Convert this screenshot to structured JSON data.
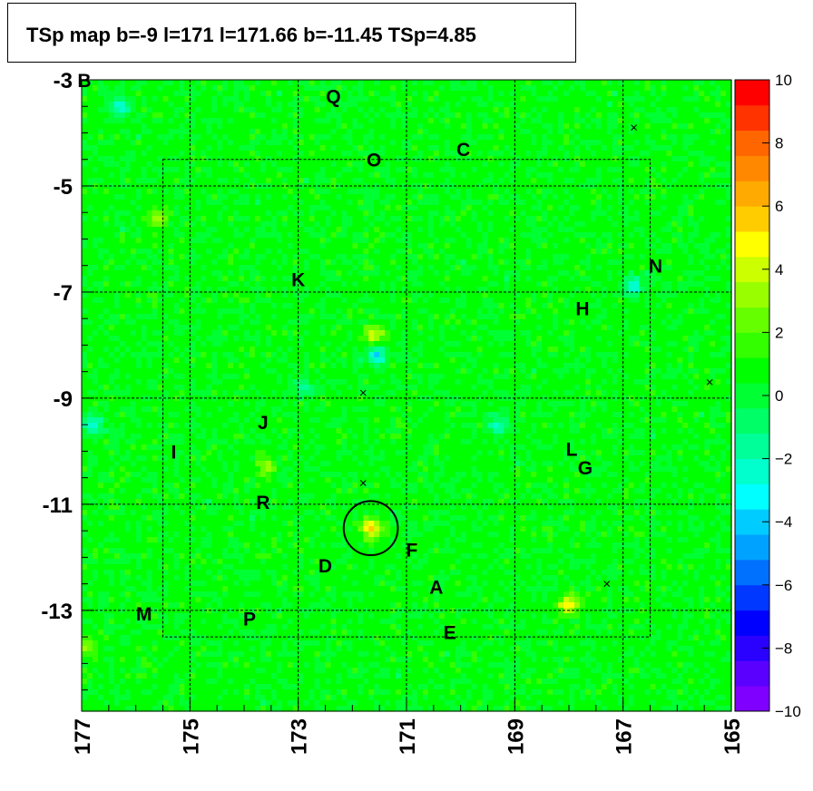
{
  "title": "TSp map b=-9 l=171 l=171.66 b=-11.45 TSp=4.85",
  "chart_data": {
    "type": "heatmap",
    "title": "TSp map b=-9 l=171 l=171.66 b=-11.45 TSp=4.85",
    "xlabel": "",
    "ylabel": "",
    "xlim": [
      177,
      165
    ],
    "ylim": [
      -14.9,
      -3
    ],
    "x_ticks": [
      "177",
      "175",
      "173",
      "171",
      "169",
      "167",
      "165"
    ],
    "y_ticks": [
      "-3",
      "-5",
      "-7",
      "-9",
      "-11",
      "-13"
    ],
    "z_range": [
      -10,
      10
    ],
    "z_ticks": [
      "10",
      "8",
      "6",
      "4",
      "2",
      "0",
      "−2",
      "−4",
      "−6",
      "−8",
      "−10"
    ],
    "palette": [
      "#7f00ff",
      "#5a00ff",
      "#2a00ff",
      "#0000ff",
      "#0038ff",
      "#0070ff",
      "#00a2ff",
      "#00ccff",
      "#00ffff",
      "#00ffcc",
      "#00ff99",
      "#00ff66",
      "#00ff33",
      "#00ff00",
      "#33ff00",
      "#66ff00",
      "#99ff00",
      "#ccff00",
      "#ffff00",
      "#ffcc00",
      "#ffaa00",
      "#ff8800",
      "#ff6600",
      "#ff3300",
      "#ff0000"
    ],
    "circle": {
      "l": 171.66,
      "b": -11.45,
      "r": 0.5
    },
    "grid_lines": {
      "l": [
        175,
        173,
        171,
        169,
        167
      ],
      "b": [
        -5,
        -7,
        -9,
        -11,
        -13
      ]
    },
    "inner_box": {
      "l": [
        175.5,
        166.5
      ],
      "b": [
        -4.5,
        -13.5
      ]
    },
    "crosses": [
      [
        166.8,
        -3.9
      ],
      [
        165.4,
        -8.7
      ],
      [
        171.8,
        -8.9
      ],
      [
        171.8,
        -10.6
      ],
      [
        167.3,
        -12.5
      ]
    ],
    "hotspots": [
      {
        "l": 171.65,
        "b": -11.45,
        "v": 5.5
      },
      {
        "l": 168.0,
        "b": -12.9,
        "v": 4.6
      },
      {
        "l": 171.6,
        "b": -7.8,
        "v": 3.6
      },
      {
        "l": 173.6,
        "b": -10.3,
        "v": 2.6
      },
      {
        "l": 175.6,
        "b": -5.6,
        "v": 2.6
      },
      {
        "l": 176.9,
        "b": -13.7,
        "v": 2.2
      }
    ],
    "coldspots": [
      {
        "l": 171.55,
        "b": -8.2,
        "v": -4
      },
      {
        "l": 176.3,
        "b": -3.5,
        "v": -3.4
      },
      {
        "l": 166.8,
        "b": -6.9,
        "v": -3.2
      },
      {
        "l": 169.3,
        "b": -9.5,
        "v": -3
      },
      {
        "l": 176.8,
        "b": -9.5,
        "v": -3.2
      },
      {
        "l": 172.9,
        "b": -8.8,
        "v": -2.2
      }
    ],
    "source_labels": [
      {
        "text": "B",
        "l": 176.95,
        "b": -3.0
      },
      {
        "text": "Q",
        "l": 172.35,
        "b": -3.3
      },
      {
        "text": "O",
        "l": 171.6,
        "b": -4.5
      },
      {
        "text": "C",
        "l": 169.95,
        "b": -4.3
      },
      {
        "text": "N",
        "l": 166.4,
        "b": -6.5
      },
      {
        "text": "K",
        "l": 173.0,
        "b": -6.75
      },
      {
        "text": "H",
        "l": 167.75,
        "b": -7.3
      },
      {
        "text": "J",
        "l": 173.65,
        "b": -9.45
      },
      {
        "text": "I",
        "l": 175.3,
        "b": -10.0
      },
      {
        "text": "L",
        "l": 167.95,
        "b": -9.95
      },
      {
        "text": "G",
        "l": 167.7,
        "b": -10.3
      },
      {
        "text": "R",
        "l": 173.65,
        "b": -10.95
      },
      {
        "text": "F",
        "l": 170.9,
        "b": -11.85
      },
      {
        "text": "D",
        "l": 172.5,
        "b": -12.15
      },
      {
        "text": "A",
        "l": 170.45,
        "b": -12.55
      },
      {
        "text": "M",
        "l": 175.85,
        "b": -13.05
      },
      {
        "text": "P",
        "l": 173.9,
        "b": -13.15
      },
      {
        "text": "E",
        "l": 170.2,
        "b": -13.4
      }
    ]
  }
}
